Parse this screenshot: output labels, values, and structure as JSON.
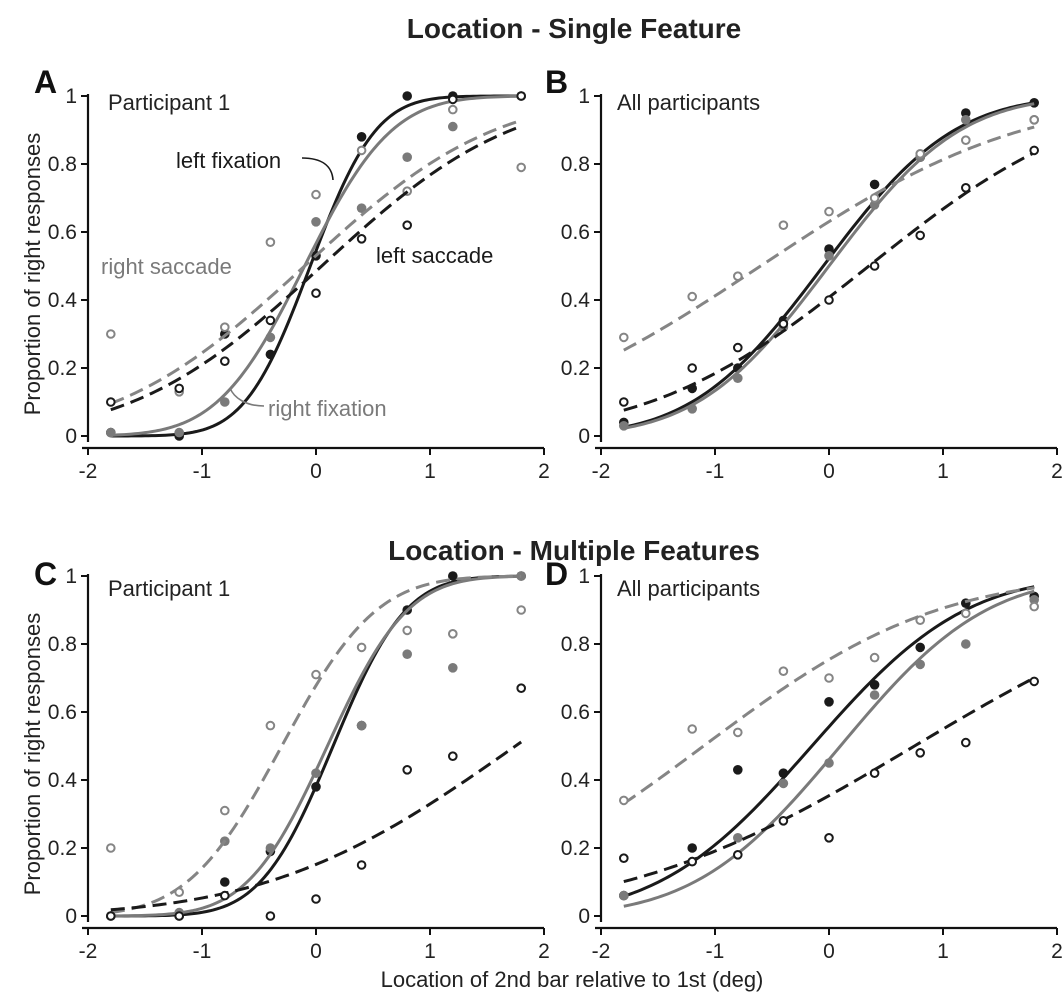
{
  "figure": {
    "section_titles": [
      "Location - Single Feature",
      "Location - Multiple Features"
    ],
    "ylabel": "Proportion of right responses",
    "xlabel": "Location of 2nd bar relative to 1st (deg)"
  },
  "colors": {
    "left_fixation": "#1a1a1a",
    "right_fixation": "#7a7a7a",
    "left_saccade": "#1a1a1a",
    "right_saccade": "#858585"
  },
  "chart_data": [
    {
      "panel": "A",
      "type": "scatter",
      "label": "Participant 1",
      "xlim": [
        -2,
        2
      ],
      "ylim": [
        0,
        1
      ],
      "xticks": [
        "-2",
        "-1",
        "0",
        "1",
        "2"
      ],
      "yticks": [
        "0",
        "0.2",
        "0.4",
        "0.6",
        "0.8",
        "1"
      ],
      "annotations": [
        {
          "text": "left fixation",
          "series": "left fixation",
          "x": 0.05,
          "y": 0.82
        },
        {
          "text": "right saccade",
          "series": "right saccade",
          "x": -1.2,
          "y": 0.5
        },
        {
          "text": "left saccade",
          "series": "left saccade",
          "x": 0.8,
          "y": 0.52
        },
        {
          "text": "right fixation",
          "series": "right fixation",
          "x": -0.4,
          "y": 0.08
        }
      ],
      "series": [
        {
          "name": "left fixation",
          "marker": "filled",
          "dash": "solid",
          "mu": -0.05,
          "sigma": 0.45,
          "lapse": 0.0,
          "x": [
            -1.8,
            -1.2,
            -0.8,
            -0.4,
            0.0,
            0.4,
            0.8,
            1.2,
            1.8
          ],
          "y": [
            0.01,
            0.0,
            0.3,
            0.24,
            0.53,
            0.88,
            1.0,
            1.0,
            1.0
          ]
        },
        {
          "name": "right fixation",
          "marker": "filled",
          "dash": "solid",
          "mu": -0.1,
          "sigma": 0.6,
          "lapse": 0.0,
          "x": [
            -1.8,
            -1.2,
            -0.8,
            -0.4,
            0.0,
            0.4,
            0.8,
            1.2,
            1.8
          ],
          "y": [
            0.01,
            0.01,
            0.1,
            0.29,
            0.63,
            0.67,
            0.82,
            0.91,
            1.0
          ]
        },
        {
          "name": "right saccade",
          "marker": "open",
          "dash": "dashed",
          "mu": -0.1,
          "sigma": 1.3,
          "lapse": 0.0,
          "x": [
            -1.8,
            -1.2,
            -0.8,
            -0.4,
            0.0,
            0.4,
            0.8,
            1.2,
            1.8
          ],
          "y": [
            0.3,
            0.13,
            0.32,
            0.57,
            0.71,
            0.84,
            0.72,
            0.96,
            0.79
          ]
        },
        {
          "name": "left saccade",
          "marker": "open",
          "dash": "dashed",
          "mu": 0.05,
          "sigma": 1.3,
          "lapse": 0.0,
          "x": [
            -1.8,
            -1.2,
            -0.8,
            -0.4,
            0.0,
            0.4,
            0.8,
            1.2,
            1.8
          ],
          "y": [
            0.1,
            0.14,
            0.22,
            0.34,
            0.42,
            0.58,
            0.62,
            0.99,
            1.0
          ]
        }
      ]
    },
    {
      "panel": "B",
      "type": "scatter",
      "label": "All participants",
      "xlim": [
        -2,
        2
      ],
      "ylim": [
        0,
        1
      ],
      "xticks": [
        "-2",
        "-1",
        "0",
        "1",
        "2"
      ],
      "yticks": [
        "0",
        "0.2",
        "0.4",
        "0.6",
        "0.8",
        "1"
      ],
      "annotations": [],
      "series": [
        {
          "name": "left fixation",
          "marker": "filled",
          "dash": "solid",
          "mu": -0.05,
          "sigma": 0.9,
          "lapse": 0.0,
          "x": [
            -1.8,
            -1.2,
            -0.8,
            -0.4,
            0.0,
            0.4,
            0.8,
            1.2,
            1.8
          ],
          "y": [
            0.04,
            0.14,
            0.2,
            0.34,
            0.55,
            0.74,
            0.82,
            0.95,
            0.98
          ]
        },
        {
          "name": "right fixation",
          "marker": "filled",
          "dash": "solid",
          "mu": 0.0,
          "sigma": 0.9,
          "lapse": 0.0,
          "x": [
            -1.8,
            -1.2,
            -0.8,
            -0.4,
            0.0,
            0.4,
            0.8,
            1.2,
            1.8
          ],
          "y": [
            0.03,
            0.08,
            0.17,
            0.32,
            0.53,
            0.68,
            0.82,
            0.93,
            0.93
          ]
        },
        {
          "name": "right saccade",
          "marker": "open",
          "dash": "dashed",
          "mu": -0.6,
          "sigma": 1.8,
          "lapse": 0.0,
          "x": [
            -1.8,
            -1.2,
            -0.8,
            -0.4,
            0.0,
            0.4,
            0.8,
            1.2,
            1.8
          ],
          "y": [
            0.29,
            0.41,
            0.47,
            0.62,
            0.66,
            0.7,
            0.83,
            0.87,
            0.93
          ]
        },
        {
          "name": "left saccade",
          "marker": "open",
          "dash": "dashed",
          "mu": 0.35,
          "sigma": 1.5,
          "lapse": 0.0,
          "x": [
            -1.8,
            -1.2,
            -0.8,
            -0.4,
            0.0,
            0.4,
            0.8,
            1.2,
            1.8
          ],
          "y": [
            0.1,
            0.2,
            0.26,
            0.33,
            0.4,
            0.5,
            0.59,
            0.73,
            0.84
          ]
        }
      ]
    },
    {
      "panel": "C",
      "type": "scatter",
      "label": "Participant 1",
      "xlim": [
        -2,
        2
      ],
      "ylim": [
        0,
        1
      ],
      "xticks": [
        "-2",
        "-1",
        "0",
        "1",
        "2"
      ],
      "yticks": [
        "0",
        "0.2",
        "0.4",
        "0.6",
        "0.8",
        "1"
      ],
      "annotations": [],
      "series": [
        {
          "name": "left fixation",
          "marker": "filled",
          "dash": "solid",
          "mu": 0.15,
          "sigma": 0.5,
          "lapse": 0.0,
          "x": [
            -1.8,
            -1.2,
            -0.8,
            -0.4,
            0.0,
            0.4,
            0.8,
            1.2,
            1.8
          ],
          "y": [
            0.0,
            0.0,
            0.1,
            0.19,
            0.38,
            0.56,
            0.9,
            1.0,
            1.0
          ]
        },
        {
          "name": "right fixation",
          "marker": "filled",
          "dash": "solid",
          "mu": 0.1,
          "sigma": 0.55,
          "lapse": 0.0,
          "x": [
            -1.8,
            -1.2,
            -0.8,
            -0.4,
            0.0,
            0.4,
            0.8,
            1.2,
            1.8
          ],
          "y": [
            0.0,
            0.01,
            0.22,
            0.2,
            0.42,
            0.56,
            0.77,
            0.73,
            1.0
          ]
        },
        {
          "name": "right saccade",
          "marker": "open",
          "dash": "dashed",
          "mu": -0.3,
          "sigma": 0.65,
          "lapse": 0.0,
          "x": [
            -1.8,
            -1.2,
            -0.8,
            -0.4,
            0.0,
            0.4,
            0.8,
            1.2,
            1.8
          ],
          "y": [
            0.2,
            0.07,
            0.31,
            0.56,
            0.71,
            0.79,
            0.84,
            0.83,
            0.9
          ]
        },
        {
          "name": "left saccade",
          "marker": "open",
          "dash": "dashed",
          "mu": 1.75,
          "sigma": 1.7,
          "lapse": 0.0,
          "x": [
            -1.8,
            -1.2,
            -0.8,
            -0.4,
            0.0,
            0.4,
            0.8,
            1.2,
            1.8
          ],
          "y": [
            0.0,
            0.0,
            0.06,
            0.0,
            0.05,
            0.15,
            0.43,
            0.47,
            0.67
          ]
        }
      ]
    },
    {
      "panel": "D",
      "type": "scatter",
      "label": "All participants",
      "xlim": [
        -2,
        2
      ],
      "ylim": [
        0,
        1
      ],
      "xticks": [
        "-2",
        "-1",
        "0",
        "1",
        "2"
      ],
      "yticks": [
        "0",
        "0.2",
        "0.4",
        "0.6",
        "0.8",
        "1"
      ],
      "annotations": [],
      "series": [
        {
          "name": "left fixation",
          "marker": "filled",
          "dash": "solid",
          "mu": -0.15,
          "sigma": 1.05,
          "lapse": 0.0,
          "x": [
            -1.8,
            -1.2,
            -0.8,
            -0.4,
            0.0,
            0.4,
            0.8,
            1.2,
            1.8
          ],
          "y": [
            0.06,
            0.2,
            0.43,
            0.42,
            0.63,
            0.68,
            0.79,
            0.92,
            0.94
          ]
        },
        {
          "name": "right fixation",
          "marker": "filled",
          "dash": "solid",
          "mu": 0.1,
          "sigma": 1.0,
          "lapse": 0.0,
          "x": [
            -1.8,
            -1.2,
            -0.8,
            -0.4,
            0.0,
            0.4,
            0.8,
            1.2,
            1.8
          ],
          "y": [
            0.06,
            0.16,
            0.23,
            0.39,
            0.45,
            0.65,
            0.74,
            0.8,
            0.93
          ]
        },
        {
          "name": "right saccade",
          "marker": "open",
          "dash": "dashed",
          "mu": -1.1,
          "sigma": 1.6,
          "lapse": 0.0,
          "x": [
            -1.8,
            -1.2,
            -0.8,
            -0.4,
            0.0,
            0.4,
            0.8,
            1.2,
            1.8
          ],
          "y": [
            0.34,
            0.55,
            0.54,
            0.72,
            0.7,
            0.76,
            0.87,
            0.89,
            0.91
          ]
        },
        {
          "name": "left saccade",
          "marker": "open",
          "dash": "dashed",
          "mu": 0.75,
          "sigma": 2.0,
          "lapse": 0.0,
          "x": [
            -1.8,
            -1.2,
            -0.8,
            -0.4,
            0.0,
            0.4,
            0.8,
            1.2,
            1.8
          ],
          "y": [
            0.17,
            0.16,
            0.18,
            0.28,
            0.23,
            0.42,
            0.48,
            0.51,
            0.69
          ]
        }
      ]
    }
  ]
}
